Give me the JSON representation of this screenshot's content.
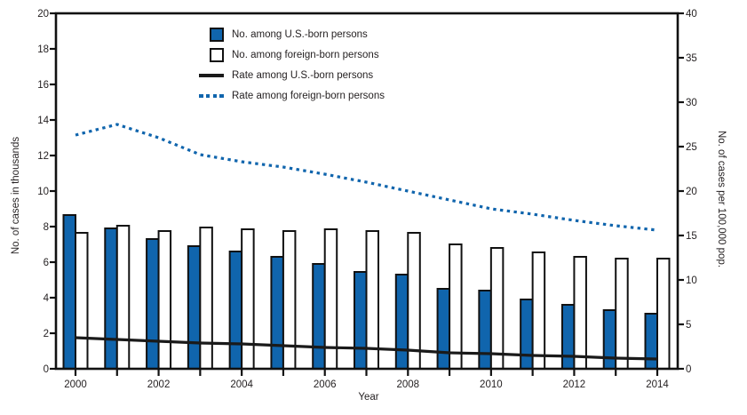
{
  "figure": {
    "background": "#ffffff",
    "text_color": "#231f20"
  },
  "colors": {
    "bar_us_born_fill": "#1065ad",
    "bar_foreign_born_fill": "#ffffff",
    "bar_stroke": "#111111",
    "rate_us_born_line": "#1a1a1a",
    "rate_foreign_born_line": "#1065ad",
    "axis": "#111111"
  },
  "chart_data": {
    "type": "bar",
    "title": "",
    "xlabel": "Year",
    "ylabel_left": "No. of cases in thousands",
    "ylabel_right": "No. of cases per 100,000 pop.",
    "ylim_left": [
      0,
      20
    ],
    "ylim_right": [
      0,
      40
    ],
    "ytick_step_left": 2,
    "ytick_step_right": 5,
    "xtick_label_every": 2,
    "grid": false,
    "legend_position": "top-center-inside",
    "categories": [
      "2000",
      "2001",
      "2002",
      "2003",
      "2004",
      "2005",
      "2006",
      "2007",
      "2008",
      "2009",
      "2010",
      "2011",
      "2012",
      "2013",
      "2014"
    ],
    "series": [
      {
        "name": "No. among U.S.-born persons",
        "type": "bar",
        "axis": "left",
        "color": "#1065ad",
        "values": [
          8.65,
          7.9,
          7.3,
          6.9,
          6.6,
          6.3,
          5.9,
          5.45,
          5.3,
          4.5,
          4.4,
          3.9,
          3.6,
          3.3,
          3.1
        ]
      },
      {
        "name": "No. among foreign-born persons",
        "type": "bar",
        "axis": "left",
        "color": "#ffffff",
        "values": [
          7.65,
          8.05,
          7.75,
          7.95,
          7.85,
          7.75,
          7.85,
          7.75,
          7.65,
          7.0,
          6.8,
          6.55,
          6.3,
          6.2,
          6.2
        ]
      },
      {
        "name": "Rate among U.S.-born persons",
        "type": "line",
        "style": "solid",
        "axis": "right",
        "color": "#1a1a1a",
        "values": [
          3.5,
          3.3,
          3.1,
          2.9,
          2.8,
          2.6,
          2.4,
          2.3,
          2.1,
          1.8,
          1.7,
          1.5,
          1.4,
          1.2,
          1.1
        ]
      },
      {
        "name": "Rate among foreign-born persons",
        "type": "line",
        "style": "dotted",
        "axis": "right",
        "color": "#1065ad",
        "values": [
          26.3,
          27.5,
          26.0,
          24.1,
          23.3,
          22.7,
          21.9,
          21.0,
          20.0,
          19.0,
          18.0,
          17.4,
          16.7,
          16.1,
          15.6
        ]
      }
    ]
  }
}
